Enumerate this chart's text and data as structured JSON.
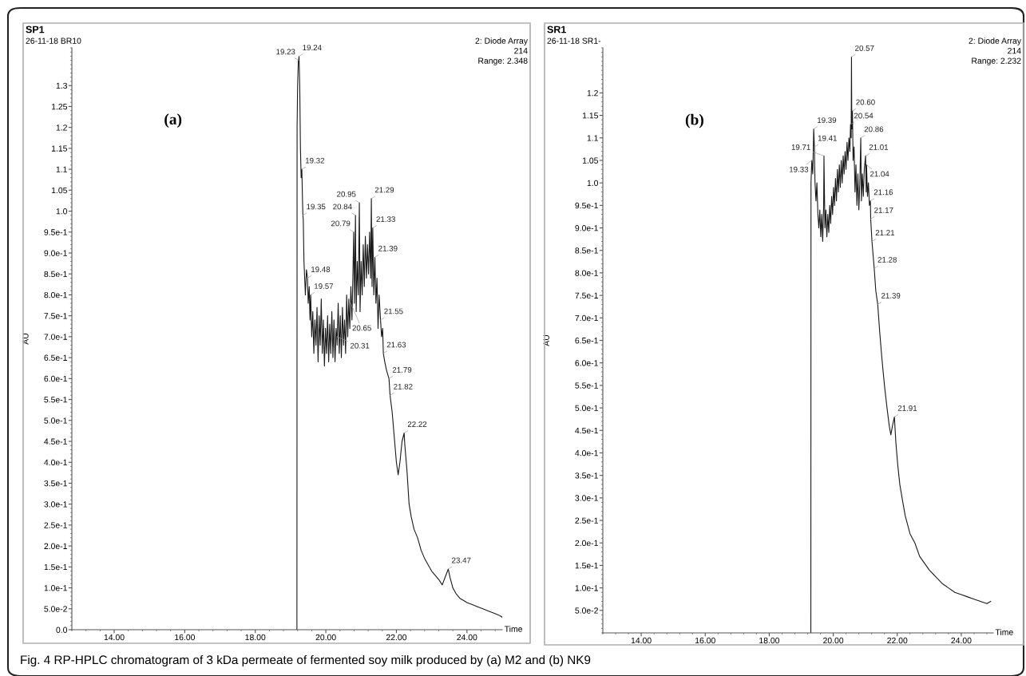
{
  "chart_data": [
    {
      "type": "line",
      "xlabel": "Time",
      "ylabel": "AU",
      "xlim": [
        12.8,
        25.0
      ],
      "ylim": [
        0.0,
        1.39
      ],
      "xticks": [
        {
          "value": 14,
          "label": "14.00"
        },
        {
          "value": 16,
          "label": "16.00"
        },
        {
          "value": 18,
          "label": "18.00"
        },
        {
          "value": 20,
          "label": "20.00"
        },
        {
          "value": 22,
          "label": "22.00"
        },
        {
          "value": 24,
          "label": "24.00"
        }
      ],
      "yticks": [
        {
          "value": 0.0,
          "label": "0.0"
        },
        {
          "value": 0.05,
          "label": "5.0e-2"
        },
        {
          "value": 0.1,
          "label": "1.0e-1"
        },
        {
          "value": 0.15,
          "label": "1.5e-1"
        },
        {
          "value": 0.2,
          "label": "2.0e-1"
        },
        {
          "value": 0.25,
          "label": "2.5e-1"
        },
        {
          "value": 0.3,
          "label": "3.0e-1"
        },
        {
          "value": 0.35,
          "label": "3.5e-1"
        },
        {
          "value": 0.4,
          "label": "4.0e-1"
        },
        {
          "value": 0.45,
          "label": "4.5e-1"
        },
        {
          "value": 0.5,
          "label": "5.0e-1"
        },
        {
          "value": 0.55,
          "label": "5.5e-1"
        },
        {
          "value": 0.6,
          "label": "6.0e-1"
        },
        {
          "value": 0.65,
          "label": "6.5e-1"
        },
        {
          "value": 0.7,
          "label": "7.0e-1"
        },
        {
          "value": 0.75,
          "label": "7.5e-1"
        },
        {
          "value": 0.8,
          "label": "8.0e-1"
        },
        {
          "value": 0.85,
          "label": "8.5e-1"
        },
        {
          "value": 0.9,
          "label": "9.0e-1"
        },
        {
          "value": 0.95,
          "label": "9.5e-1"
        },
        {
          "value": 1.0,
          "label": "1.0"
        },
        1.05,
        1.1,
        1.15,
        1.2,
        1.25,
        1.3
      ],
      "series": [
        {
          "color": "#1a1a1a",
          "x": [
            19.18,
            19.185,
            19.2,
            19.22,
            19.23,
            19.24,
            19.26,
            19.28,
            19.3,
            19.32,
            19.34,
            19.35,
            19.36,
            19.38,
            19.4,
            19.42,
            19.45,
            19.48,
            19.5,
            19.53,
            19.55,
            19.57,
            19.6,
            19.63,
            19.66,
            19.69,
            19.72,
            19.75,
            19.78,
            19.81,
            19.84,
            19.87,
            19.9,
            19.93,
            19.96,
            19.99,
            20.02,
            20.05,
            20.08,
            20.11,
            20.14,
            20.17,
            20.2,
            20.23,
            20.26,
            20.29,
            20.31,
            20.32,
            20.35,
            20.38,
            20.41,
            20.44,
            20.47,
            20.5,
            20.53,
            20.56,
            20.59,
            20.62,
            20.65,
            20.68,
            20.71,
            20.74,
            20.77,
            20.79,
            20.81,
            20.84,
            20.86,
            20.89,
            20.92,
            20.95,
            20.97,
            21.0,
            21.03,
            21.06,
            21.09,
            21.12,
            21.15,
            21.18,
            21.21,
            21.24,
            21.27,
            21.29,
            21.31,
            21.33,
            21.36,
            21.39,
            21.42,
            21.45,
            21.48,
            21.51,
            21.55,
            21.58,
            21.61,
            21.63,
            21.67,
            21.72,
            21.79,
            21.82,
            21.88,
            21.94,
            22.0,
            22.05,
            22.1,
            22.16,
            22.22,
            22.24,
            22.3,
            22.36,
            22.42,
            22.5,
            22.6,
            22.7,
            22.8,
            22.9,
            23.0,
            23.1,
            23.2,
            23.3,
            23.38,
            23.47,
            23.52,
            23.6,
            23.7,
            23.8,
            23.9,
            24.0,
            24.15,
            24.3,
            24.45,
            24.6,
            24.75,
            24.9,
            25.0
          ],
          "values": [
            0,
            1.2,
            1.3,
            1.36,
            1.36,
            1.37,
            1.3,
            1.15,
            1.08,
            1.1,
            1.02,
            0.99,
            0.98,
            0.88,
            0.84,
            0.8,
            0.86,
            0.84,
            0.78,
            0.82,
            0.74,
            0.8,
            0.7,
            0.76,
            0.66,
            0.74,
            0.68,
            0.77,
            0.64,
            0.75,
            0.68,
            0.79,
            0.66,
            0.74,
            0.63,
            0.72,
            0.66,
            0.75,
            0.64,
            0.73,
            0.66,
            0.76,
            0.65,
            0.74,
            0.64,
            0.72,
            0.7,
            0.68,
            0.78,
            0.66,
            0.75,
            0.65,
            0.77,
            0.68,
            0.74,
            0.66,
            0.8,
            0.7,
            0.79,
            0.72,
            0.82,
            0.74,
            0.86,
            0.95,
            0.78,
            0.99,
            0.76,
            0.88,
            0.8,
            1.02,
            0.76,
            0.88,
            0.8,
            0.92,
            0.82,
            0.94,
            0.84,
            0.92,
            0.85,
            0.95,
            0.84,
            1.03,
            0.82,
            0.96,
            0.8,
            0.89,
            0.78,
            0.84,
            0.72,
            0.8,
            0.74,
            0.7,
            0.72,
            0.66,
            0.64,
            0.62,
            0.6,
            0.56,
            0.52,
            0.46,
            0.4,
            0.37,
            0.4,
            0.45,
            0.47,
            0.44,
            0.38,
            0.3,
            0.27,
            0.24,
            0.22,
            0.19,
            0.17,
            0.155,
            0.14,
            0.13,
            0.12,
            0.107,
            0.125,
            0.145,
            0.125,
            0.1,
            0.085,
            0.075,
            0.07,
            0.065,
            0.06,
            0.055,
            0.05,
            0.045,
            0.04,
            0.035,
            0.03
          ]
        }
      ],
      "annotations": [
        "SP1",
        "26-11-18 BR10",
        "2: Diode Array",
        "214",
        "Range: 2.348",
        "(a)",
        {
          "text": "19.24",
          "x": 19.24,
          "y": 1.37
        },
        {
          "text": "19.23",
          "x": 19.23,
          "y": 1.36
        },
        {
          "text": "19.32",
          "x": 19.32,
          "y": 1.1
        },
        {
          "text": "19.35",
          "x": 19.35,
          "y": 0.99
        },
        {
          "text": "20.95",
          "x": 20.95,
          "y": 1.02
        },
        {
          "text": "21.29",
          "x": 21.29,
          "y": 1.03
        },
        {
          "text": "20.84",
          "x": 20.84,
          "y": 0.99
        },
        {
          "text": "20.79",
          "x": 20.79,
          "y": 0.95
        },
        {
          "text": "21.33",
          "x": 21.33,
          "y": 0.96
        },
        {
          "text": "21.39",
          "x": 21.39,
          "y": 0.89
        },
        {
          "text": "21.55",
          "x": 21.55,
          "y": 0.74
        },
        {
          "text": "19.48",
          "x": 19.48,
          "y": 0.84
        },
        {
          "text": "19.57",
          "x": 19.57,
          "y": 0.8
        },
        {
          "text": "20.65",
          "x": 20.65,
          "y": 0.79
        },
        {
          "text": "20.31",
          "x": 20.31,
          "y": 0.7
        },
        {
          "text": "21.63",
          "x": 21.63,
          "y": 0.66
        },
        {
          "text": "21.79",
          "x": 21.79,
          "y": 0.6
        },
        {
          "text": "21.82",
          "x": 21.82,
          "y": 0.56
        },
        {
          "text": "22.22",
          "x": 22.22,
          "y": 0.47
        },
        {
          "text": "23.47",
          "x": 23.47,
          "y": 0.145
        },
        "Fig. 4 RP-HPLC chromatogram of 3 kDa permeate of fermented soy milk produced by (a) M2 and (b) NK9"
      ]
    },
    {
      "type": "line",
      "xlabel": "Time",
      "ylabel": "AU",
      "xlim": [
        12.8,
        25.0
      ],
      "ylim": [
        0.0,
        1.3
      ],
      "xticks": [
        {
          "value": 14,
          "label": "14.00"
        },
        {
          "value": 16,
          "label": "16.00"
        },
        {
          "value": 18,
          "label": "18.00"
        },
        {
          "value": 20,
          "label": "20.00"
        },
        {
          "value": 22,
          "label": "22.00"
        },
        {
          "value": 24,
          "label": "24.00"
        }
      ],
      "yticks": [
        {
          "value": 0.05,
          "label": "5.0e-2"
        },
        {
          "value": 0.1,
          "label": "1.0e-1"
        },
        {
          "value": 0.15,
          "label": "1.5e-1"
        },
        {
          "value": 0.2,
          "label": "2.0e-1"
        },
        {
          "value": 0.25,
          "label": "2.5e-1"
        },
        {
          "value": 0.3,
          "label": "3.0e-1"
        },
        {
          "value": 0.35,
          "label": "3.5e-1"
        },
        {
          "value": 0.4,
          "label": "4.0e-1"
        },
        {
          "value": 0.45,
          "label": "4.5e-1"
        },
        {
          "value": 0.5,
          "label": "5.0e-1"
        },
        {
          "value": 0.55,
          "label": "5.5e-1"
        },
        {
          "value": 0.6,
          "label": "6.0e-1"
        },
        {
          "value": 0.65,
          "label": "6.5e-1"
        },
        {
          "value": 0.7,
          "label": "7.0e-1"
        },
        {
          "value": 0.75,
          "label": "7.5e-1"
        },
        {
          "value": 0.8,
          "label": "8.0e-1"
        },
        {
          "value": 0.85,
          "label": "8.5e-1"
        },
        {
          "value": 0.9,
          "label": "9.0e-1"
        },
        {
          "value": 0.95,
          "label": "9.5e-1"
        },
        {
          "value": 1.0,
          "label": "1.0"
        },
        1.05,
        1.1,
        1.15,
        1.2
      ],
      "series": [
        {
          "color": "#1a1a1a",
          "x": [
            19.3,
            19.305,
            19.33,
            19.36,
            19.39,
            19.41,
            19.43,
            19.46,
            19.49,
            19.52,
            19.55,
            19.58,
            19.61,
            19.64,
            19.67,
            19.7,
            19.71,
            19.74,
            19.77,
            19.8,
            19.83,
            19.86,
            19.89,
            19.92,
            19.95,
            19.98,
            20.01,
            20.04,
            20.07,
            20.1,
            20.13,
            20.16,
            20.19,
            20.22,
            20.25,
            20.28,
            20.31,
            20.34,
            20.37,
            20.4,
            20.43,
            20.46,
            20.49,
            20.52,
            20.54,
            20.56,
            20.57,
            20.58,
            20.6,
            20.62,
            20.65,
            20.68,
            20.71,
            20.74,
            20.77,
            20.8,
            20.83,
            20.86,
            20.88,
            20.91,
            20.94,
            20.97,
            21.01,
            21.03,
            21.04,
            21.07,
            21.1,
            21.13,
            21.16,
            21.17,
            21.21,
            21.28,
            21.33,
            21.39,
            21.45,
            21.52,
            21.6,
            21.68,
            21.75,
            21.8,
            21.85,
            21.91,
            21.96,
            22.02,
            22.08,
            22.15,
            22.25,
            22.4,
            22.55,
            22.7,
            22.85,
            23.0,
            23.2,
            23.4,
            23.6,
            23.8,
            24.0,
            24.2,
            24.4,
            24.6,
            24.8,
            24.92
          ],
          "values": [
            0,
            1.0,
            1.05,
            1.02,
            1.12,
            1.08,
            1.0,
            0.96,
            1.0,
            0.93,
            0.9,
            0.94,
            0.88,
            0.93,
            0.87,
            0.95,
            1.06,
            0.9,
            0.94,
            0.88,
            0.93,
            0.89,
            0.95,
            0.91,
            0.97,
            0.93,
            0.99,
            0.95,
            1.01,
            0.96,
            1.03,
            0.98,
            1.04,
            0.99,
            1.05,
            1.0,
            1.06,
            1.02,
            1.07,
            1.03,
            1.09,
            1.05,
            1.1,
            1.07,
            1.13,
            1.1,
            1.28,
            1.12,
            1.16,
            1.05,
            1.08,
            0.98,
            1.04,
            0.95,
            1.02,
            0.94,
            1.0,
            1.1,
            0.96,
            1.02,
            0.97,
            1.03,
            1.06,
            0.98,
            1.04,
            0.97,
            1.0,
            0.95,
            0.96,
            0.92,
            0.87,
            0.81,
            0.76,
            0.73,
            0.67,
            0.61,
            0.55,
            0.5,
            0.46,
            0.44,
            0.46,
            0.48,
            0.42,
            0.37,
            0.33,
            0.3,
            0.26,
            0.22,
            0.2,
            0.17,
            0.155,
            0.14,
            0.125,
            0.11,
            0.1,
            0.09,
            0.085,
            0.08,
            0.075,
            0.07,
            0.065,
            0.07
          ]
        }
      ],
      "annotations": [
        "SR1",
        "26-11-18 SR1-",
        "2: Diode Array",
        "214",
        "Range: 2.232",
        "(b)",
        {
          "text": "20.57",
          "x": 20.57,
          "y": 1.28
        },
        {
          "text": "20.60",
          "x": 20.6,
          "y": 1.16
        },
        {
          "text": "20.54",
          "x": 20.54,
          "y": 1.13
        },
        {
          "text": "19.39",
          "x": 19.39,
          "y": 1.12
        },
        {
          "text": "20.86",
          "x": 20.86,
          "y": 1.1
        },
        {
          "text": "19.41",
          "x": 19.41,
          "y": 1.08
        },
        {
          "text": "21.01",
          "x": 21.01,
          "y": 1.06
        },
        {
          "text": "19.71",
          "x": 19.71,
          "y": 1.06
        },
        {
          "text": "21.04",
          "x": 21.04,
          "y": 1.04
        },
        {
          "text": "19.33",
          "x": 19.33,
          "y": 1.05
        },
        {
          "text": "21.16",
          "x": 21.16,
          "y": 0.96
        },
        {
          "text": "21.17",
          "x": 21.17,
          "y": 0.92
        },
        {
          "text": "21.21",
          "x": 21.21,
          "y": 0.87
        },
        {
          "text": "21.28",
          "x": 21.28,
          "y": 0.81
        },
        {
          "text": "21.39",
          "x": 21.39,
          "y": 0.73
        },
        {
          "text": "21.91",
          "x": 21.91,
          "y": 0.48
        }
      ]
    }
  ]
}
